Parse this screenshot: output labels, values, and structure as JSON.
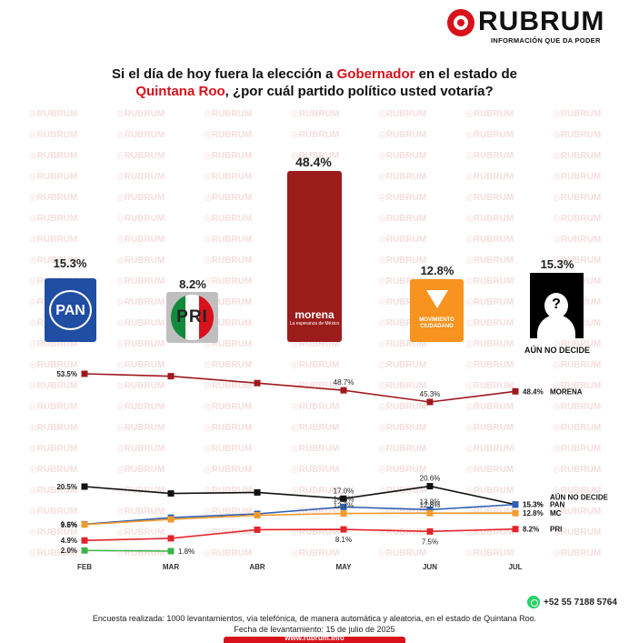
{
  "brand": {
    "name": "RUBRUM",
    "tagline": "INFORMACIÓN QUE DA PODER",
    "watermark": "RUBRUM"
  },
  "title": {
    "part1": "Si el día de hoy fuera la elección a ",
    "highlight1": "Gobernador",
    "part2": " en el estado de",
    "highlight2": "Quintana Roo",
    "part3": ", ¿por cuál partido político usted votaría?"
  },
  "parties": [
    {
      "key": "pan",
      "value_label": "15.3%",
      "logo_text": "PAN",
      "color": "#0a3d91"
    },
    {
      "key": "pri",
      "value_label": "8.2%",
      "logo_text": "PRI",
      "color": "#d8111b"
    },
    {
      "key": "morena",
      "value_label": "48.4%",
      "logo_text": "morena",
      "logo_sub": "La esperanza de México",
      "color": "#9c1c1c"
    },
    {
      "key": "mc",
      "value_label": "12.8%",
      "logo_text": "MOVIMIENTO CIUDADANO",
      "color": "#f7931e"
    },
    {
      "key": "undecided",
      "value_label": "15.3%",
      "logo_text": "?",
      "caption": "AÚN NO DECIDE",
      "color": "#000000"
    }
  ],
  "chart_data": {
    "type": "line",
    "title": "Si el día de hoy fuera la elección a Gobernador en el estado de Quintana Roo, ¿por cuál partido político usted votaría?",
    "xlabel": "",
    "ylabel": "",
    "x": [
      "FEB",
      "MAR",
      "ABR",
      "MAY",
      "JUN",
      "JUL"
    ],
    "series": [
      {
        "name": "MORENA",
        "color": "#a0191d",
        "values": [
          53.5,
          52.8,
          50.8,
          48.7,
          45.3,
          48.4
        ],
        "labels": [
          "53.5%",
          "",
          "",
          "48.7%",
          "45.3%",
          "48.4%"
        ]
      },
      {
        "name": "AÚN NO DECIDE",
        "color": "#111111",
        "values": [
          20.5,
          18.5,
          18.8,
          17.0,
          20.6,
          15.3
        ],
        "labels": [
          "20.5%",
          "",
          "",
          "17.0%",
          "20.6%",
          "15.3%"
        ]
      },
      {
        "name": "PAN",
        "color": "#2f5fb5",
        "values": [
          9.6,
          11.5,
          12.6,
          14.6,
          13.8,
          15.3
        ],
        "labels": [
          "9.6%",
          "",
          "",
          "14.6%",
          "13.8%",
          "15.3%"
        ]
      },
      {
        "name": "MC",
        "color": "#f39a2b",
        "values": [
          9.5,
          11.0,
          12.2,
          12.7,
          12.8,
          12.8
        ],
        "labels": [
          "9.5%",
          "",
          "",
          "12.7%",
          "12.8%",
          "12.8%"
        ]
      },
      {
        "name": "PRI",
        "color": "#e3242b",
        "values": [
          4.9,
          5.5,
          8.0,
          8.1,
          7.5,
          8.2
        ],
        "labels": [
          "4.9%",
          "",
          "",
          "8.1%",
          "7.5%",
          "8.2%"
        ]
      },
      {
        "name": "",
        "color": "#3cb44b",
        "values": [
          2.0,
          1.8,
          null,
          null,
          null,
          null
        ],
        "labels": [
          "2.0%",
          "1.8%",
          "",
          "",
          "",
          ""
        ]
      }
    ],
    "grid": false,
    "legend": "inline-right"
  },
  "footer": {
    "phone": "+52 55 7188 5764",
    "note": "Encuesta realizada: 1000 levantamientos, vía telefónica, de manera automática y aleatoria, en el estado de Quintana Roo.",
    "date": "Fecha de levantamiento: 15 de julio de 2025",
    "url": "www.rubrum.info"
  }
}
